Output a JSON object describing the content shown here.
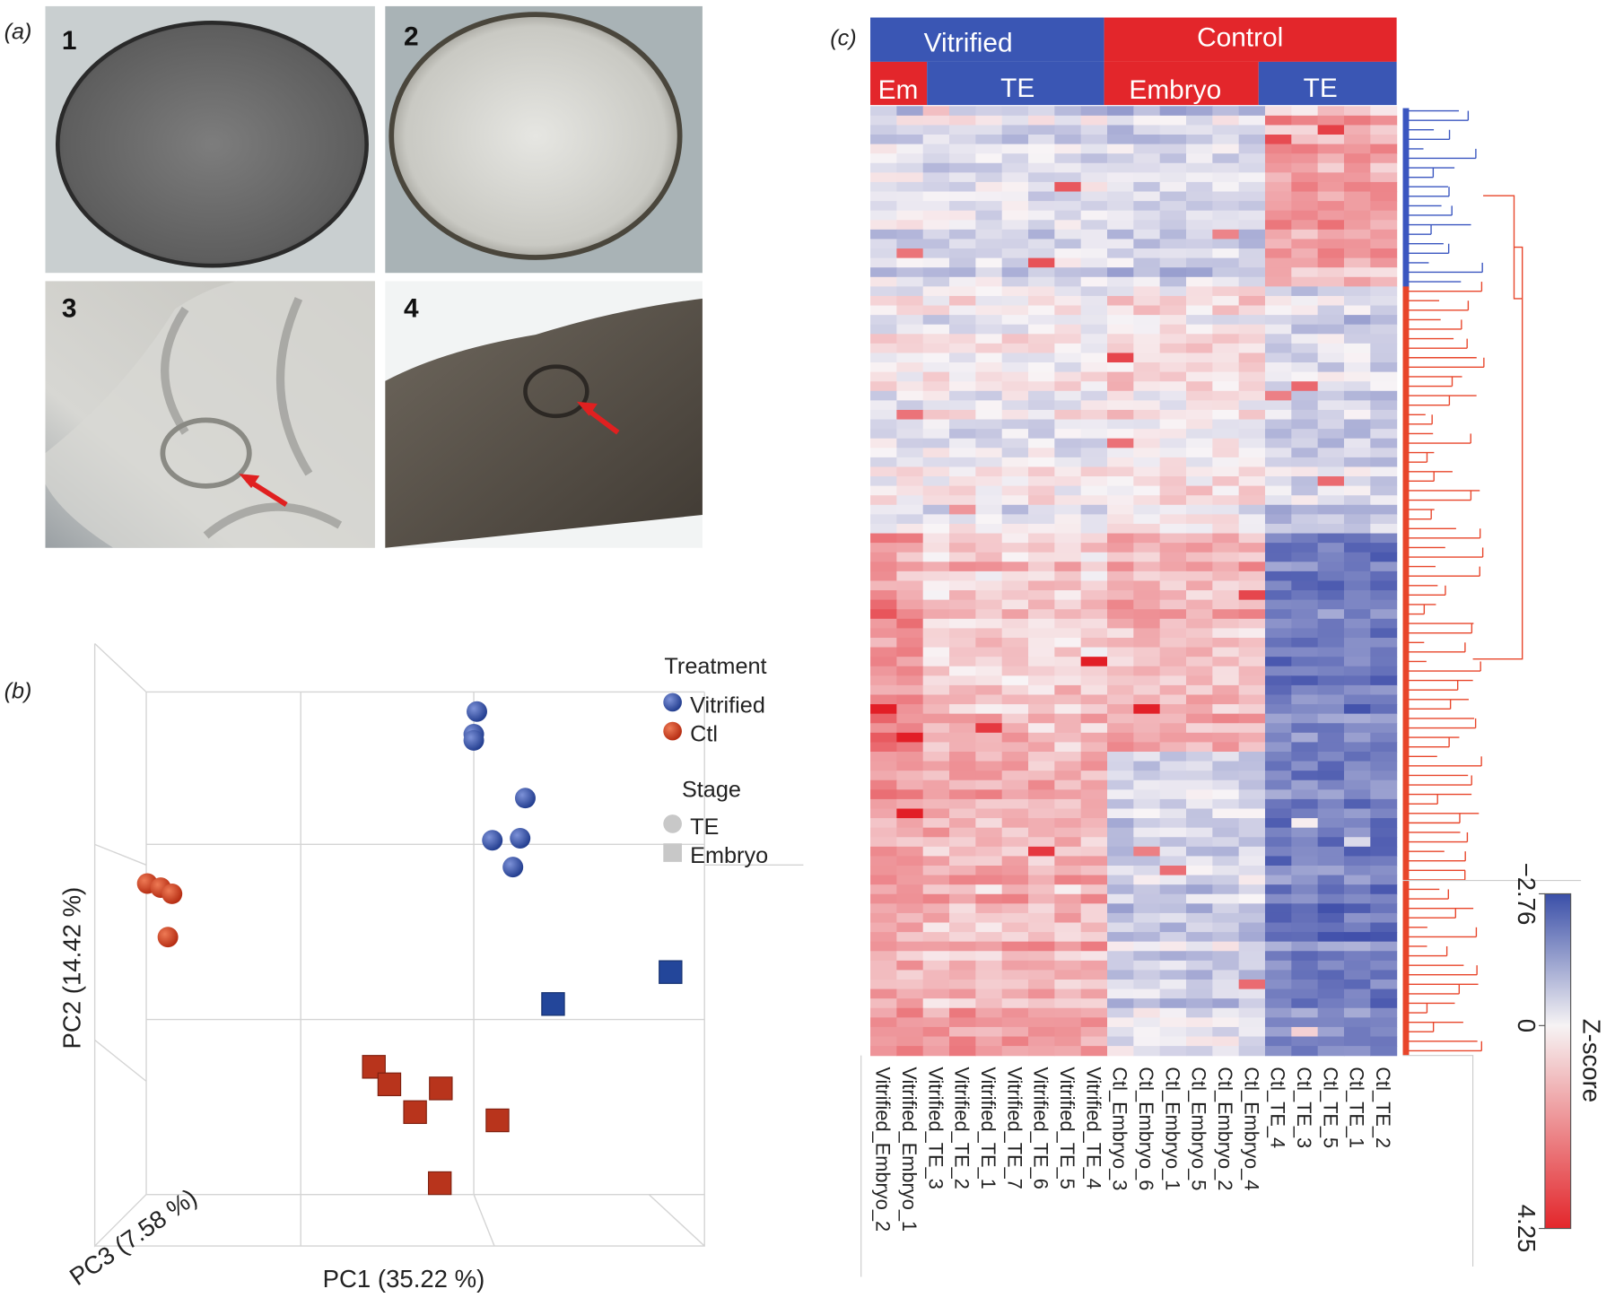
{
  "panel_labels": [
    "(a)",
    "(b)",
    "(c)"
  ],
  "photos": {
    "labels": [
      "1",
      "2",
      "3",
      "4"
    ]
  },
  "pca": {
    "legend": {
      "treatment_title": "Treatment",
      "treatment": [
        "Vitrified",
        "Ctl"
      ],
      "stage_title": "Stage",
      "stage": [
        "TE",
        "Embryo"
      ]
    },
    "x_label": "PC1 (35.22 %)",
    "y_label": "PC2 (14.42 %)",
    "z_label": "PC3 (7.58 %)"
  },
  "heatmap": {
    "groups": [
      "Vitrified",
      "Control"
    ],
    "subgroups": [
      "Em",
      "TE",
      "Embryo",
      "TE"
    ],
    "samples": [
      "Vitrified_Embryo_2",
      "Vitrified_Embryo_1",
      "Vitrified_TE_3",
      "Vitrified_TE_2",
      "Vitrified_TE_1",
      "Vitrified_TE_7",
      "Vitrified_TE_6",
      "Vitrified_TE_5",
      "Vitrified_TE_4",
      "Ctl_Embryo_3",
      "Ctl_Embryo_6",
      "Ctl_Embryo_1",
      "Ctl_Embryo_5",
      "Ctl_Embryo_2",
      "Ctl_Embryo_4",
      "Ctl_TE_4",
      "Ctl_TE_3",
      "Ctl_TE_5",
      "Ctl_TE_1",
      "Ctl_TE_2"
    ],
    "colorbar": {
      "title": "Z-score",
      "range": [
        -2.76,
        4.25
      ],
      "ticks": [
        {
          "value": -2.76,
          "label": "−2.76"
        },
        0,
        4.25
      ]
    }
  }
}
